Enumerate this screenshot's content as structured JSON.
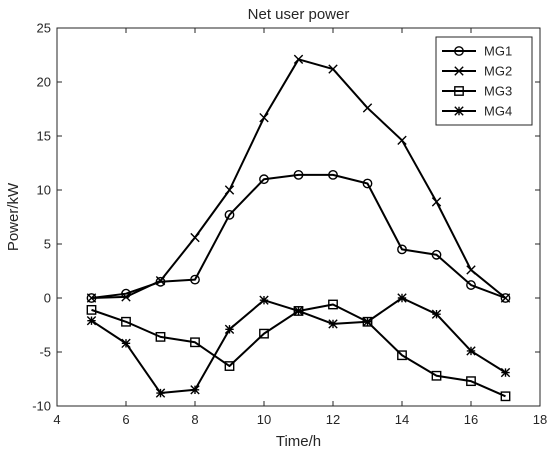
{
  "chart_data": {
    "type": "line",
    "title": "Net user power",
    "xlabel": "Time/h",
    "ylabel": "Power/kW",
    "xlim": [
      4,
      18
    ],
    "ylim": [
      -10,
      25
    ],
    "xticks": [
      4,
      6,
      8,
      10,
      12,
      14,
      16,
      18
    ],
    "yticks": [
      -10,
      -5,
      0,
      5,
      10,
      15,
      20,
      25
    ],
    "grid": false,
    "legend_position": "top-right",
    "x": [
      5,
      6,
      7,
      8,
      9,
      10,
      11,
      12,
      13,
      14,
      15,
      16,
      17
    ],
    "series": [
      {
        "name": "MG1",
        "marker": "circle",
        "color": "#000000",
        "values": [
          0,
          0.4,
          1.5,
          1.7,
          7.7,
          11.0,
          11.4,
          11.4,
          10.6,
          4.5,
          4.0,
          1.2,
          0
        ]
      },
      {
        "name": "MG2",
        "marker": "x",
        "color": "#000000",
        "values": [
          0,
          0.1,
          1.6,
          5.6,
          10.0,
          16.7,
          22.1,
          21.2,
          17.6,
          14.6,
          8.9,
          2.6,
          0
        ]
      },
      {
        "name": "MG3",
        "marker": "square",
        "color": "#000000",
        "values": [
          -1.1,
          -2.2,
          -3.6,
          -4.1,
          -6.3,
          -3.3,
          -1.2,
          -0.6,
          -2.2,
          -5.3,
          -7.2,
          -7.7,
          -9.1
        ]
      },
      {
        "name": "MG4",
        "marker": "asterisk",
        "color": "#000000",
        "values": [
          -2.1,
          -4.2,
          -8.8,
          -8.5,
          -2.9,
          -0.2,
          -1.2,
          -2.4,
          -2.2,
          0,
          -1.5,
          -4.9,
          -6.9
        ]
      }
    ]
  }
}
